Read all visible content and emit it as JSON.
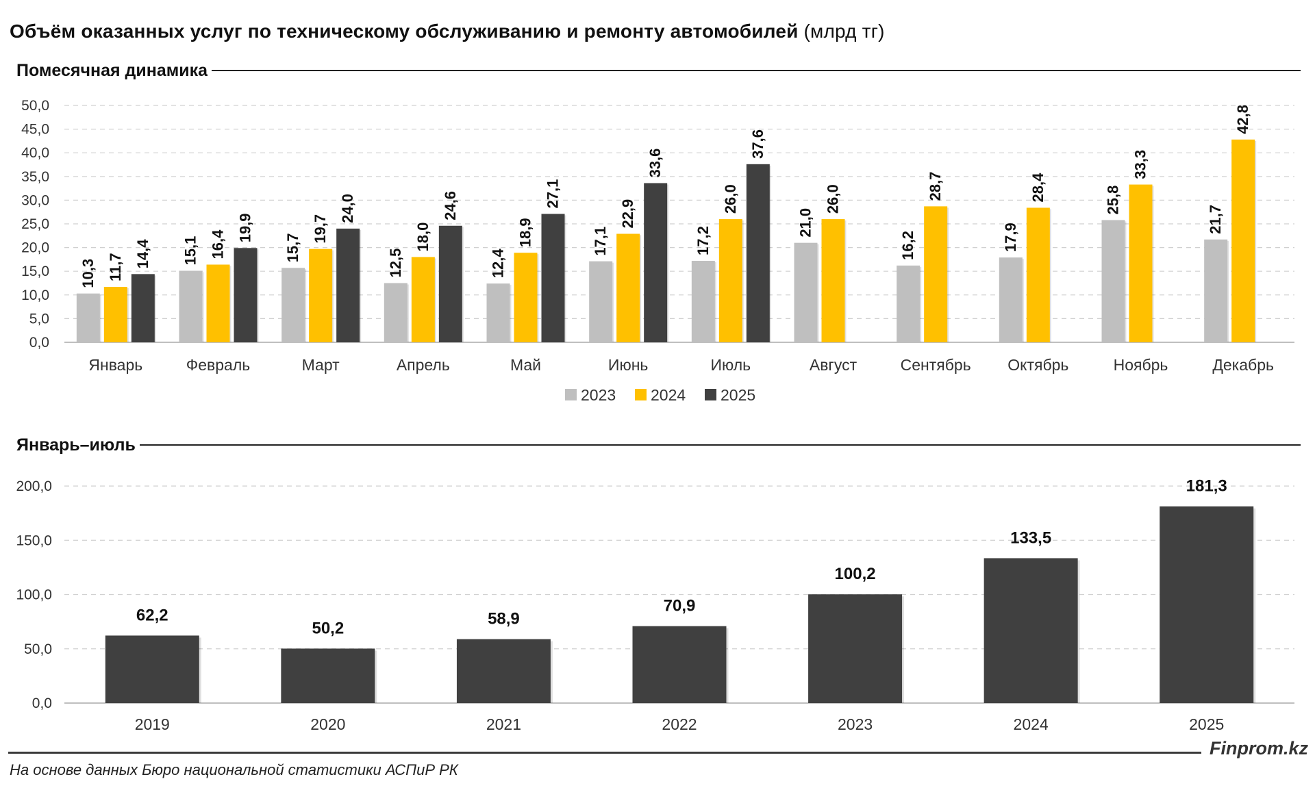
{
  "page": {
    "title_main": "Объём оказанных услуг по техническому обслуживанию и ремонту автомобилей",
    "title_unit": "(млрд тг)",
    "section1_label": "Помесячная динамика",
    "section2_label": "Январь–июль",
    "brand": "Finprom.kz",
    "source": "На основе данных Бюро национальной статистики АСПиР РК"
  },
  "colors": {
    "s2023": "#bfbfbf",
    "s2024": "#ffc000",
    "s2025": "#404040",
    "grid": "#d0d0d0",
    "axis": "#bfbfbf"
  },
  "chart_data": [
    {
      "type": "bar",
      "title": "Помесячная динамика",
      "categories": [
        "Январь",
        "Февраль",
        "Март",
        "Апрель",
        "Май",
        "Июнь",
        "Июль",
        "Август",
        "Сентябрь",
        "Октябрь",
        "Ноябрь",
        "Декабрь"
      ],
      "series": [
        {
          "name": "2023",
          "values": [
            "10,3",
            "15,1",
            "15,7",
            "12,5",
            "12,4",
            "17,1",
            "17,2",
            "21,0",
            "16,2",
            "17,9",
            "25,8",
            "21,7"
          ]
        },
        {
          "name": "2024",
          "values": [
            "11,7",
            "16,4",
            "19,7",
            "18,0",
            "18,9",
            "22,9",
            "26,0",
            "26,0",
            "28,7",
            "28,4",
            "33,3",
            "42,8"
          ]
        },
        {
          "name": "2025",
          "values": [
            "14,4",
            "19,9",
            "24,0",
            "24,6",
            "27,1",
            "33,6",
            "37,6",
            null,
            null,
            null,
            null,
            null
          ]
        }
      ],
      "ylim": [
        0,
        50
      ],
      "yticks": [
        "0,0",
        "5,0",
        "10,0",
        "15,0",
        "20,0",
        "25,0",
        "30,0",
        "35,0",
        "40,0",
        "45,0",
        "50,0"
      ],
      "grid": true,
      "legend": "bottom-center"
    },
    {
      "type": "bar",
      "title": "Январь–июль",
      "categories": [
        "2019",
        "2020",
        "2021",
        "2022",
        "2023",
        "2024",
        "2025"
      ],
      "values": [
        "62,2",
        "50,2",
        "58,9",
        "70,9",
        "100,2",
        "133,5",
        "181,3"
      ],
      "ylim": [
        0,
        200
      ],
      "yticks": [
        "0,0",
        "50,0",
        "100,0",
        "150,0",
        "200,0"
      ],
      "grid": true
    }
  ]
}
